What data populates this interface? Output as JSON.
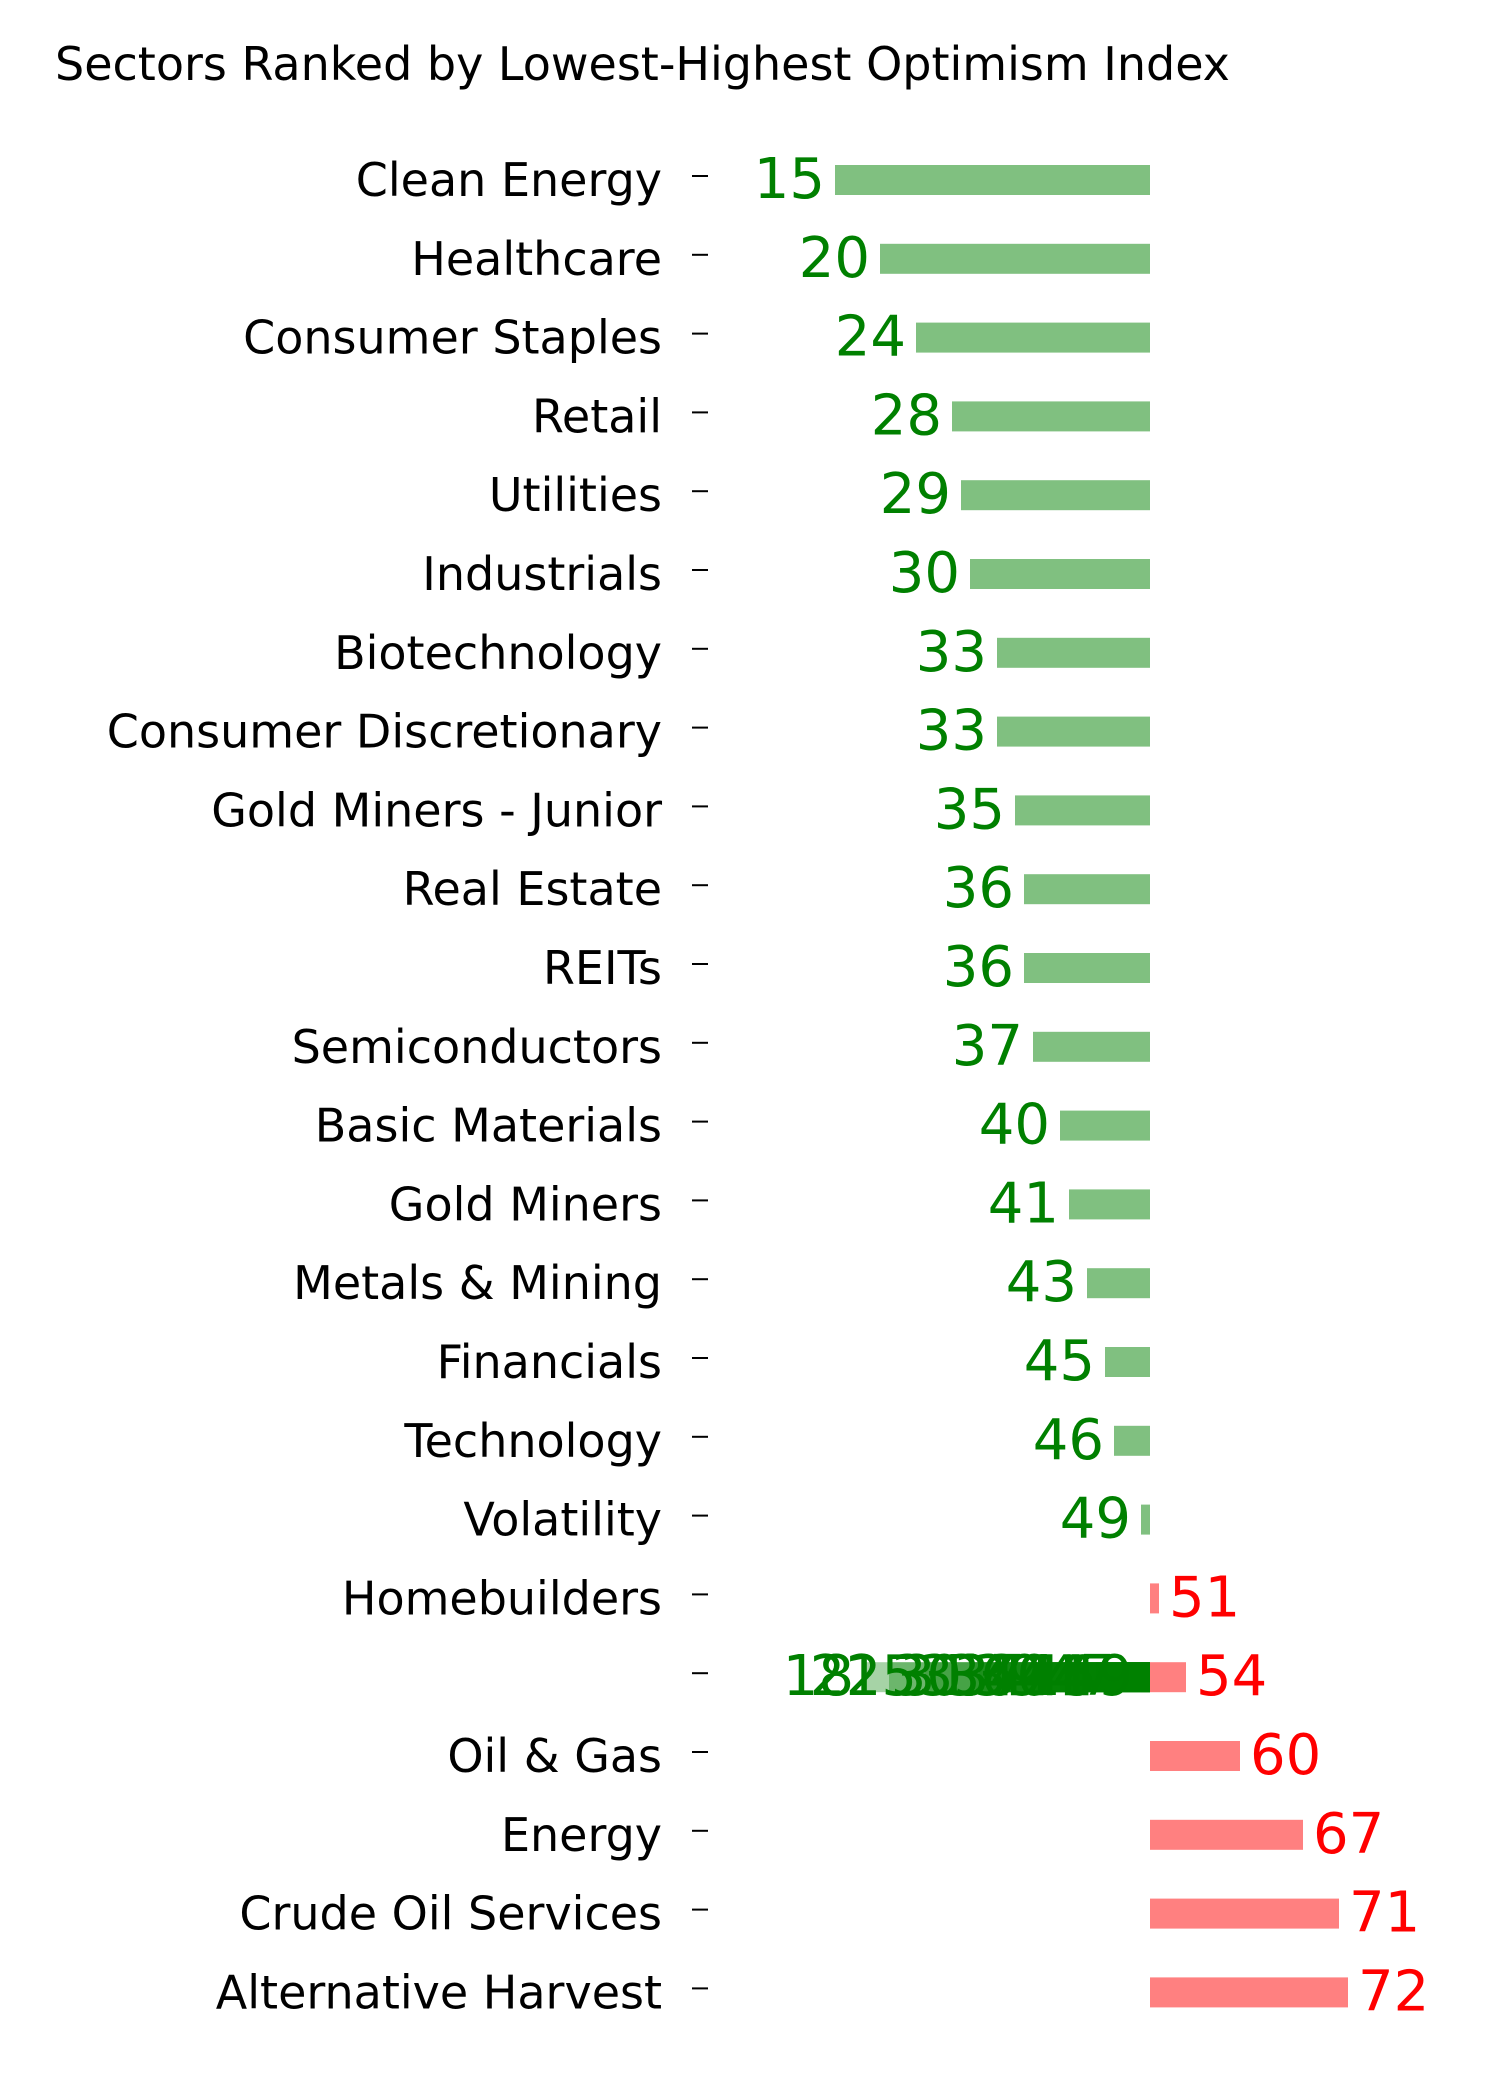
{
  "chart_data": {
    "type": "bar",
    "orientation": "horizontal",
    "title": "Sectors Ranked by Lowest-Highest Optimism Index",
    "xlabel": "",
    "ylabel": "",
    "baseline": 50,
    "grid": false,
    "colors": {
      "below_bar": "#80c080",
      "below_text": "#008000",
      "above_bar": "#ff8080",
      "above_text": "#ff0000",
      "overlay_bar": "#008000",
      "overlay_text": "#008000"
    },
    "categories": [
      "Clean Energy",
      "Healthcare",
      "Consumer Staples",
      "Retail",
      "Utilities",
      "Industrials",
      "Biotechnology",
      "Consumer Discretionary",
      "Gold Miners - Junior",
      "Real Estate",
      "REITs",
      "Semiconductors",
      "Basic Materials",
      "Gold Miners",
      "Metals & Mining",
      "Financials",
      "Technology",
      "Volatility",
      "Homebuilders",
      "",
      "Oil & Gas",
      "Energy",
      "Crude Oil Services",
      "Alternative Harvest"
    ],
    "values": [
      15,
      20,
      24,
      28,
      29,
      30,
      33,
      33,
      35,
      36,
      36,
      37,
      40,
      41,
      43,
      45,
      46,
      49,
      51,
      54,
      60,
      67,
      71,
      72
    ],
    "value_labels": [
      "15",
      "20",
      "24",
      "28",
      "29",
      "30",
      "33",
      "33",
      "35",
      "36",
      "36",
      "37",
      "40",
      "41",
      "43",
      "45",
      "46",
      "49",
      "51",
      "54",
      "60",
      "67",
      "71",
      "72"
    ],
    "overlay": {
      "row": 19,
      "values": [
        18,
        21,
        25,
        30,
        31,
        33,
        36,
        37,
        39,
        40,
        41,
        44,
        45,
        47,
        49
      ],
      "labels": [
        "18",
        "21",
        "25",
        "30",
        "31",
        "33",
        "36",
        "37",
        "39",
        "40",
        "41",
        "44",
        "45",
        "47",
        "49"
      ]
    }
  }
}
